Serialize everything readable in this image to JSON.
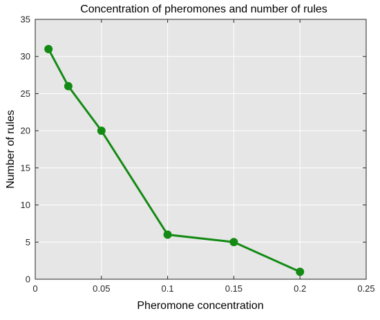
{
  "chart_data": {
    "type": "line",
    "title": "Concentration of pheromones and number of rules",
    "xlabel": "Pheromone concentration",
    "ylabel": "Number of rules",
    "xlim": [
      0,
      0.25
    ],
    "ylim": [
      0,
      35
    ],
    "x_ticks": [
      0,
      0.05,
      0.1,
      0.15,
      0.2,
      0.25
    ],
    "x_tick_labels": [
      "0",
      "0.05",
      "0.1",
      "0.15",
      "0.2",
      "0.25"
    ],
    "y_ticks": [
      0,
      5,
      10,
      15,
      20,
      25,
      30,
      35
    ],
    "y_tick_labels": [
      "0",
      "5",
      "10",
      "15",
      "20",
      "25",
      "30",
      "35"
    ],
    "grid": true,
    "legend": "none",
    "series": [
      {
        "x": [
          0.01,
          0.025,
          0.05,
          0.1,
          0.15,
          0.2
        ],
        "y": [
          31,
          26,
          20,
          6,
          5,
          1
        ],
        "color": "#138a13",
        "marker": "circle"
      }
    ],
    "colors": {
      "plot_background": "#e6e6e6",
      "grid": "#ffffff",
      "axis": "#262626"
    }
  }
}
